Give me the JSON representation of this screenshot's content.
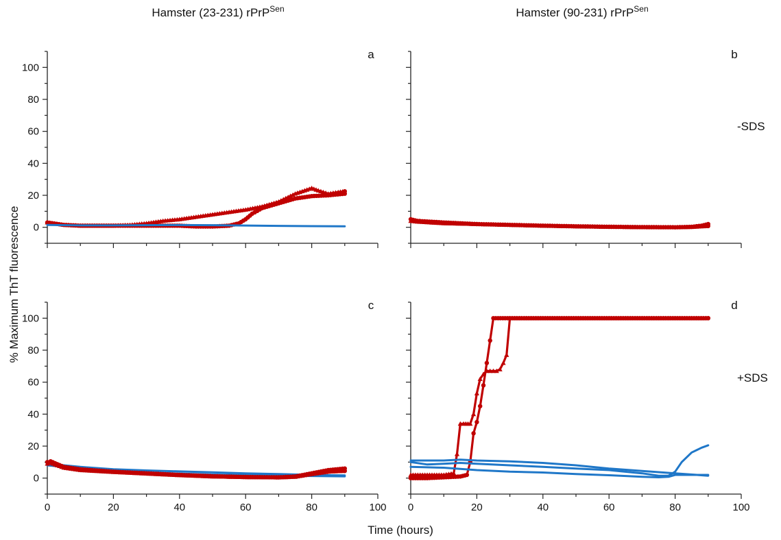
{
  "figure": {
    "col_titles": [
      {
        "main": "Hamster (23-231) rPrP",
        "sup": "Sen"
      },
      {
        "main": "Hamster (90-231) rPrP",
        "sup": "Sen"
      }
    ],
    "row_labels": [
      "-SDS",
      "+SDS"
    ],
    "ylabel": "% Maximum ThT fluorescence",
    "xlabel": "Time (hours)",
    "colors": {
      "red": "#c00000",
      "blue": "#1f77c8"
    }
  },
  "chart_data": [
    {
      "type": "line",
      "panel": "a",
      "xlim": [
        0,
        100
      ],
      "ylim": [
        -10,
        110
      ],
      "xticks": [
        0,
        20,
        40,
        60,
        80,
        100
      ],
      "yticks": [
        0,
        20,
        40,
        60,
        80,
        100
      ],
      "grid": false,
      "series": [
        {
          "color": "red",
          "marker": "triangle",
          "x": [
            0,
            5,
            10,
            20,
            25,
            30,
            35,
            40,
            45,
            50,
            55,
            60,
            65,
            70,
            75,
            80,
            82,
            85,
            88,
            90
          ],
          "y": [
            3,
            1.5,
            1,
            1,
            1.5,
            2.5,
            4,
            5,
            6.5,
            8,
            9.5,
            11,
            13,
            16,
            21,
            24.5,
            23,
            21,
            22,
            22.5
          ]
        },
        {
          "color": "red",
          "marker": "circle",
          "x": [
            0,
            5,
            10,
            20,
            30,
            40,
            45,
            50,
            55,
            58,
            60,
            62,
            65,
            70,
            75,
            80,
            85,
            90
          ],
          "y": [
            3,
            1.5,
            1,
            1,
            1,
            1,
            0.5,
            0.5,
            1,
            2.5,
            5,
            8.5,
            12,
            15,
            18,
            19.5,
            20,
            21
          ]
        },
        {
          "color": "blue",
          "marker": "none",
          "x": [
            0,
            10,
            20,
            30,
            40,
            50,
            60,
            70,
            80,
            90
          ],
          "y": [
            1.5,
            1.2,
            1.2,
            1.3,
            1.4,
            1.3,
            1.1,
            0.9,
            0.7,
            0.6
          ]
        }
      ]
    },
    {
      "type": "line",
      "panel": "b",
      "xlim": [
        0,
        100
      ],
      "ylim": [
        -10,
        110
      ],
      "xticks": [
        0,
        20,
        40,
        60,
        80,
        100
      ],
      "yticks": [
        0,
        20,
        40,
        60,
        80,
        100
      ],
      "grid": false,
      "series": [
        {
          "color": "blue",
          "marker": "none",
          "x": [
            0,
            20,
            40,
            60,
            80,
            90
          ],
          "y": [
            4,
            2,
            1.2,
            0.7,
            0.3,
            0.2
          ]
        },
        {
          "color": "red",
          "marker": "circle",
          "x": [
            0,
            2,
            10,
            20,
            30,
            40,
            50,
            60,
            70,
            80,
            85,
            88,
            90
          ],
          "y": [
            5,
            4,
            3,
            2,
            1.5,
            1,
            0.6,
            0.3,
            0.1,
            0,
            0.3,
            1,
            2
          ]
        },
        {
          "color": "red",
          "marker": "triangle",
          "x": [
            0,
            2,
            10,
            20,
            30,
            40,
            50,
            60,
            70,
            80,
            85,
            90
          ],
          "y": [
            4,
            3.5,
            2.5,
            2,
            1.5,
            1,
            0.6,
            0.3,
            0.1,
            0,
            0.2,
            0.8
          ]
        }
      ]
    },
    {
      "type": "line",
      "panel": "c",
      "xlim": [
        0,
        100
      ],
      "ylim": [
        -10,
        110
      ],
      "xticks": [
        0,
        20,
        40,
        60,
        80,
        100
      ],
      "yticks": [
        0,
        20,
        40,
        60,
        80,
        100
      ],
      "grid": false,
      "series": [
        {
          "color": "blue",
          "marker": "none",
          "x": [
            0,
            10,
            20,
            30,
            40,
            50,
            60,
            70,
            80,
            90
          ],
          "y": [
            9,
            7,
            5.5,
            4.8,
            4.2,
            3.6,
            3,
            2.5,
            2,
            1.7
          ]
        },
        {
          "color": "blue",
          "marker": "none",
          "x": [
            0,
            10,
            20,
            30,
            40,
            50,
            60,
            70,
            80,
            90
          ],
          "y": [
            8,
            6,
            4.5,
            3.5,
            2.8,
            2.2,
            1.8,
            1.5,
            1.3,
            1.1
          ]
        },
        {
          "color": "red",
          "marker": "circle",
          "x": [
            0,
            1,
            5,
            10,
            20,
            30,
            40,
            50,
            60,
            70,
            75,
            80,
            85,
            90
          ],
          "y": [
            10,
            10.5,
            7,
            5.5,
            4,
            3,
            2,
            1.2,
            0.7,
            0.5,
            1,
            3,
            5,
            6
          ]
        },
        {
          "color": "red",
          "marker": "triangle",
          "x": [
            0,
            1,
            5,
            10,
            20,
            30,
            40,
            50,
            60,
            70,
            75,
            80,
            85,
            90
          ],
          "y": [
            9,
            9.5,
            6.5,
            5,
            3.8,
            2.8,
            1.8,
            1,
            0.6,
            0.4,
            0.8,
            2.5,
            4,
            4.5
          ]
        }
      ]
    },
    {
      "type": "line",
      "panel": "d",
      "xlim": [
        0,
        100
      ],
      "ylim": [
        -10,
        110
      ],
      "xticks": [
        0,
        20,
        40,
        60,
        80,
        100
      ],
      "yticks": [
        0,
        20,
        40,
        60,
        80,
        100
      ],
      "grid": false,
      "series": [
        {
          "color": "red",
          "marker": "triangle",
          "x": [
            0,
            5,
            10,
            13,
            14,
            15,
            16,
            18,
            19,
            20,
            21,
            22,
            23,
            24,
            25,
            26,
            27,
            28,
            29,
            30,
            35,
            40,
            50,
            60,
            70,
            80,
            90
          ],
          "y": [
            2,
            2,
            2,
            3,
            15,
            34,
            34,
            34,
            40,
            53,
            62,
            65,
            67,
            67,
            67,
            67,
            68,
            72,
            77,
            100,
            100,
            100,
            100,
            100,
            100,
            100,
            100
          ]
        },
        {
          "color": "red",
          "marker": "circle",
          "x": [
            0,
            5,
            10,
            15,
            17,
            18,
            19,
            20,
            21,
            22,
            23,
            24,
            25,
            30,
            40,
            50,
            60,
            70,
            80,
            90
          ],
          "y": [
            0,
            0,
            0.5,
            1,
            2,
            10,
            28,
            35,
            45,
            58,
            72,
            86,
            100,
            100,
            100,
            100,
            100,
            100,
            100,
            100
          ]
        },
        {
          "color": "blue",
          "marker": "none",
          "x": [
            0,
            5,
            10,
            15,
            20,
            30,
            40,
            50,
            60,
            70,
            75,
            78,
            80,
            82,
            85,
            88,
            90
          ],
          "y": [
            10,
            8.5,
            9,
            9.5,
            9,
            8,
            7,
            6,
            5,
            3,
            1.5,
            1.5,
            4,
            10,
            16,
            19,
            20.5
          ]
        },
        {
          "color": "blue",
          "marker": "none",
          "x": [
            0,
            10,
            15,
            20,
            30,
            40,
            50,
            60,
            70,
            80,
            90
          ],
          "y": [
            11,
            11,
            11.5,
            11,
            10.5,
            9.5,
            8,
            6,
            4.5,
            3,
            1.5
          ]
        },
        {
          "color": "blue",
          "marker": "none",
          "x": [
            0,
            10,
            20,
            30,
            40,
            50,
            60,
            70,
            75,
            78,
            80,
            85,
            90
          ],
          "y": [
            7,
            6.5,
            5,
            4,
            3.5,
            2.5,
            1.8,
            0.8,
            0.5,
            0.8,
            2,
            2,
            2
          ]
        }
      ]
    }
  ]
}
